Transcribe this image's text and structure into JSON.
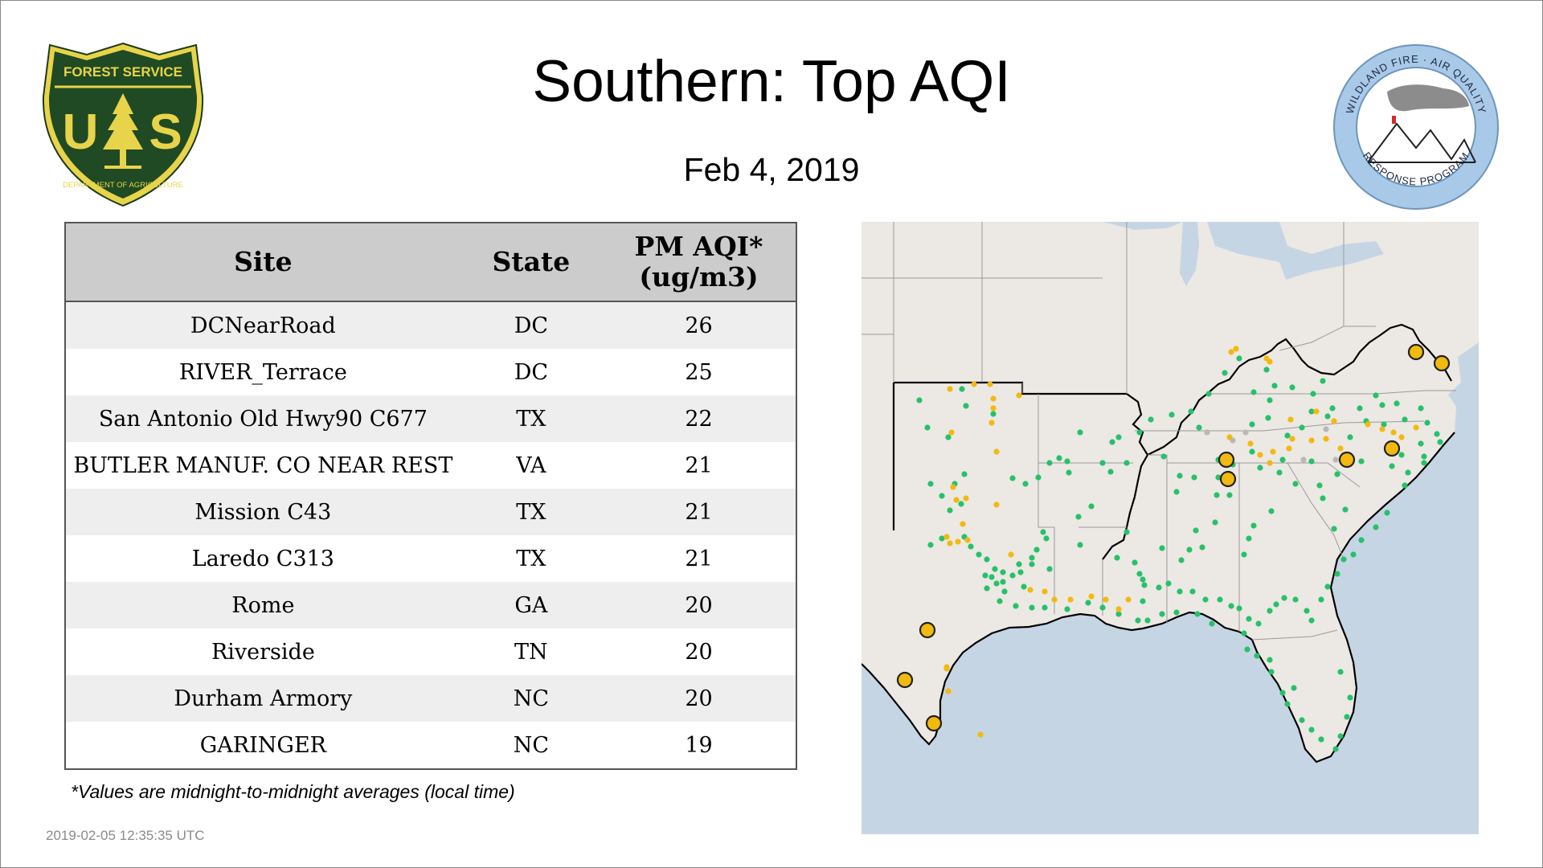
{
  "title": "Southern: Top AQI",
  "date": "Feb  4, 2019",
  "logos": {
    "usfs": {
      "top_text": "FOREST SERVICE",
      "letters": "U S",
      "bottom_text": "DEPARTMENT OF AGRICULTURE"
    },
    "wildland": {
      "top_text": "WILDLAND FIRE · AIR QUALITY",
      "bottom_text": "RESPONSE PROGRAM"
    }
  },
  "table": {
    "headers": {
      "site": "Site",
      "state": "State",
      "aqi_line1": "PM AQI*",
      "aqi_line2": "(ug/m3)"
    },
    "rows": [
      {
        "site": "DCNearRoad",
        "state": "DC",
        "aqi": "26"
      },
      {
        "site": "RIVER_Terrace",
        "state": "DC",
        "aqi": "25"
      },
      {
        "site": "San Antonio Old Hwy90 C677",
        "state": "TX",
        "aqi": "22"
      },
      {
        "site": "BUTLER MANUF. CO NEAR REST",
        "state": "VA",
        "aqi": "21"
      },
      {
        "site": "Mission C43",
        "state": "TX",
        "aqi": "21"
      },
      {
        "site": "Laredo C313",
        "state": "TX",
        "aqi": "21"
      },
      {
        "site": "Rome",
        "state": "GA",
        "aqi": "20"
      },
      {
        "site": "Riverside",
        "state": "TN",
        "aqi": "20"
      },
      {
        "site": "Durham Armory",
        "state": "NC",
        "aqi": "20"
      },
      {
        "site": "GARINGER",
        "state": "NC",
        "aqi": "19"
      }
    ]
  },
  "footnote": "*Values are midnight-to-midnight averages (local time)",
  "timestamp": "2019-02-05 12:35:35 UTC",
  "map": {
    "colors": {
      "land": "#ece8e4",
      "water": "#c6d5e4",
      "good": "#27c16a",
      "moderate": "#f2b90f",
      "no_data": "#b8b8b8",
      "region_border": "#000000"
    }
  }
}
